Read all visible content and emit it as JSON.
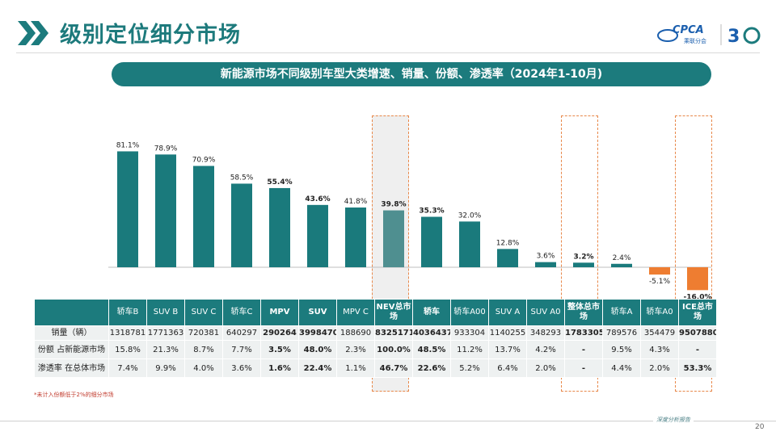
{
  "header": {
    "title": "级别定位细分市场",
    "logo_text": "CPCA",
    "logo_sub": "乘联分会",
    "anniversary": "30",
    "banner": "新能源市场不同级别车型大类增速、销量、份额、渗透率（2024年1-10月)"
  },
  "chart_data": {
    "type": "bar",
    "title": "新能源市场不同级别车型大类增速、销量、份额、渗透率（2024年1-10月)",
    "categories": [
      "轿车B",
      "SUV B",
      "SUV C",
      "轿车C",
      "MPV",
      "SUV",
      "MPV C",
      "NEV总市场",
      "轿车",
      "轿车A00",
      "SUV A",
      "SUV A0",
      "整体总市场",
      "轿车A",
      "轿车A0",
      "ICE总市场"
    ],
    "values": [
      81.1,
      78.9,
      70.9,
      58.5,
      55.4,
      43.6,
      41.8,
      39.8,
      35.3,
      32.0,
      12.8,
      3.6,
      3.2,
      2.4,
      -5.1,
      -16.0
    ],
    "value_labels": [
      "81.1%",
      "78.9%",
      "70.9%",
      "58.5%",
      "55.4%",
      "43.6%",
      "41.8%",
      "39.8%",
      "35.3%",
      "32.0%",
      "12.8%",
      "3.6%",
      "3.2%",
      "2.4%",
      "-5.1%",
      "-16.0%"
    ],
    "bold_categories": [
      "MPV",
      "SUV",
      "NEV总市场",
      "轿车",
      "整体总市场",
      "ICE总市场"
    ],
    "colors": {
      "positive": "#1a7a7c",
      "negative": "#ee7d31",
      "highlight": "#4f8f90"
    },
    "ylim": [
      -20,
      90
    ],
    "grid": false
  },
  "table": {
    "columns": [
      "轿车B",
      "SUV B",
      "SUV C",
      "轿车C",
      "MPV",
      "SUV",
      "MPV C",
      "NEV总市场",
      "轿车",
      "轿车A00",
      "SUV A",
      "SUV A0",
      "整体总市场",
      "轿车A",
      "轿车A0",
      "ICE总市场"
    ],
    "rows": [
      {
        "label": "销量（辆）",
        "cells": [
          "1318781",
          "1771363",
          "720381",
          "640297",
          "290264",
          "3998470",
          "188690",
          "8325171",
          "4036437",
          "933304",
          "1140255",
          "348293",
          "17833051",
          "789576",
          "354479",
          "9507880"
        ]
      },
      {
        "label": "份额 占新能源市场",
        "cells": [
          "15.8%",
          "21.3%",
          "8.7%",
          "7.7%",
          "3.5%",
          "48.0%",
          "2.3%",
          "100.0%",
          "48.5%",
          "11.2%",
          "13.7%",
          "4.2%",
          "-",
          "9.5%",
          "4.3%",
          "-"
        ]
      },
      {
        "label": "渗透率 在总体市场",
        "cells": [
          "7.4%",
          "9.9%",
          "4.0%",
          "3.6%",
          "1.6%",
          "22.4%",
          "1.1%",
          "46.7%",
          "22.6%",
          "5.2%",
          "6.4%",
          "2.0%",
          "-",
          "4.4%",
          "2.0%",
          "53.3%"
        ]
      }
    ]
  },
  "footnote": "*未计入份额低于2%的细分市场",
  "footer": {
    "report_tag": "深度分析报告",
    "page_number": "20"
  }
}
